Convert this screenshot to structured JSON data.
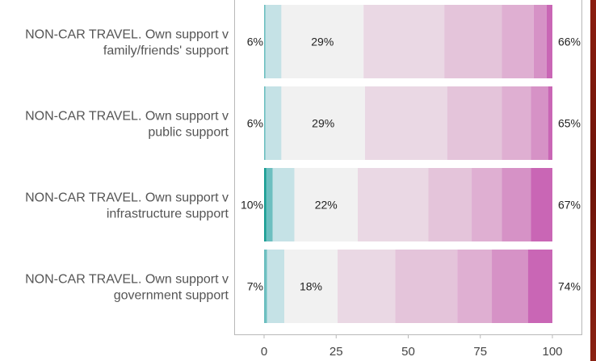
{
  "chart_data": {
    "type": "bar",
    "orientation": "horizontal",
    "stacked": true,
    "title": "",
    "xlabel": "",
    "ylabel": "",
    "xlim": [
      0,
      100
    ],
    "x_ticks": [
      "0",
      "25",
      "50",
      "75",
      "100"
    ],
    "grid": false,
    "legend": "none",
    "segment_colors": [
      "#1a9e94",
      "#6cbfc0",
      "#c5e2e6",
      "#f1f1f1",
      "#ead8e4",
      "#e4c4da",
      "#dfafd2",
      "#d692c6",
      "#c966b5"
    ],
    "rows": [
      {
        "label_line1": "NON-CAR TRAVEL. Own support v",
        "label_line2": "family/friends' support",
        "segments": [
          0,
          0.5,
          5.5,
          28.5,
          28.0,
          20.0,
          11.0,
          4.5,
          2.0
        ],
        "left_pct": "6%",
        "mid_pct": "29%",
        "right_pct": "66%"
      },
      {
        "label_line1": "NON-CAR TRAVEL. Own support v",
        "label_line2": "public support",
        "segments": [
          0,
          0.5,
          5.5,
          29.0,
          28.5,
          19.0,
          10.0,
          6.0,
          1.5
        ],
        "left_pct": "6%",
        "mid_pct": "29%",
        "right_pct": "65%"
      },
      {
        "label_line1": "NON-CAR TRAVEL. Own support v",
        "label_line2": "infrastructure support",
        "segments": [
          0.8,
          2.2,
          7.5,
          22.0,
          24.5,
          15.0,
          10.5,
          10.0,
          7.5
        ],
        "left_pct": "10%",
        "mid_pct": "22%",
        "right_pct": "67%"
      },
      {
        "label_line1": "NON-CAR TRAVEL. Own support v",
        "label_line2": "government support",
        "segments": [
          0,
          1.0,
          6.0,
          18.5,
          20.0,
          21.5,
          12.0,
          12.5,
          8.5
        ],
        "left_pct": "7%",
        "mid_pct": "18%",
        "right_pct": "74%"
      }
    ]
  }
}
